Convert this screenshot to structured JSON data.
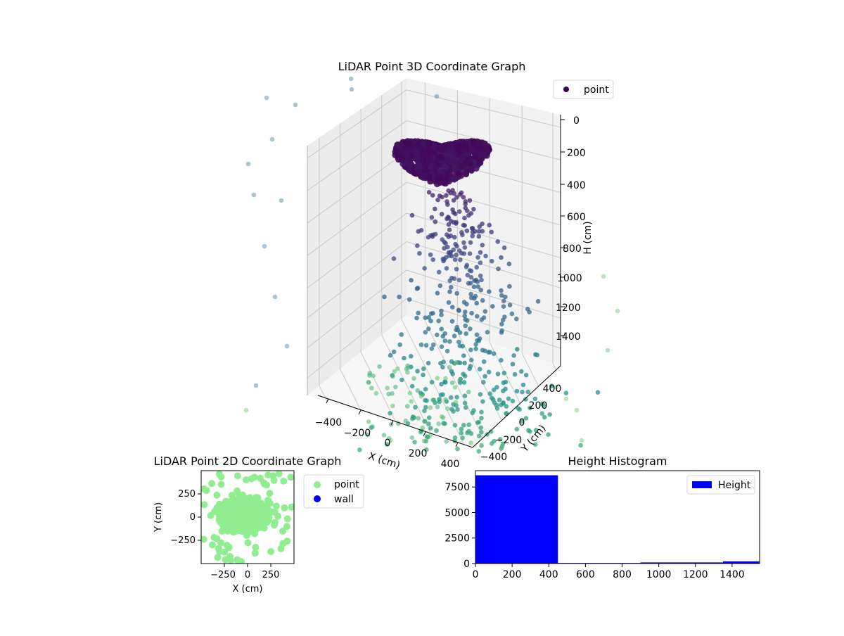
{
  "chart_data": [
    {
      "type": "scatter3d",
      "title": "LiDAR Point 3D Coordinate Graph",
      "xlabel": "X (cm)",
      "ylabel": "Y (cm)",
      "zlabel": "H (cm)",
      "xticks": [
        "−400",
        "−200",
        "0",
        "200",
        "400"
      ],
      "yticks": [
        "−400",
        "−200",
        "0",
        "200",
        "400"
      ],
      "zticks": [
        "0",
        "200",
        "400",
        "600",
        "800",
        "1000",
        "1200",
        "1400"
      ],
      "zlim": [
        0,
        1550
      ],
      "z_inverted": true,
      "grid": true,
      "colormap": "viridis",
      "legend": {
        "position": "top-right",
        "entries": [
          {
            "label": "point",
            "color": "#440154"
          }
        ]
      }
    },
    {
      "type": "scatter",
      "title": "LiDAR Point 2D Coordinate Graph",
      "xlabel": "X (cm)",
      "ylabel": "Y (cm)",
      "xticks": [
        "−250",
        "0",
        "250"
      ],
      "yticks": [
        "250",
        "0",
        "−250"
      ],
      "xlim": [
        -500,
        500
      ],
      "ylim": [
        -500,
        500
      ],
      "grid": false,
      "legend": {
        "position": "outside-right",
        "entries": [
          {
            "label": "point",
            "color": "#90ee90"
          },
          {
            "label": "wall",
            "color": "#0000ff"
          }
        ]
      }
    },
    {
      "type": "bar",
      "title": "Height Histogram",
      "xticks": [
        "0",
        "200",
        "400",
        "600",
        "800",
        "1000",
        "1200",
        "1400"
      ],
      "yticks": [
        "0",
        "2500",
        "5000",
        "7500"
      ],
      "xlim": [
        0,
        1550
      ],
      "ylim": [
        0,
        9100
      ],
      "bin_edges": [
        0,
        450,
        900,
        1350,
        1550
      ],
      "counts": [
        8650,
        60,
        110,
        210
      ],
      "color": "#0000ff",
      "legend": {
        "position": "top-right",
        "entries": [
          {
            "label": "Height",
            "color": "#0000ff"
          }
        ]
      }
    }
  ]
}
